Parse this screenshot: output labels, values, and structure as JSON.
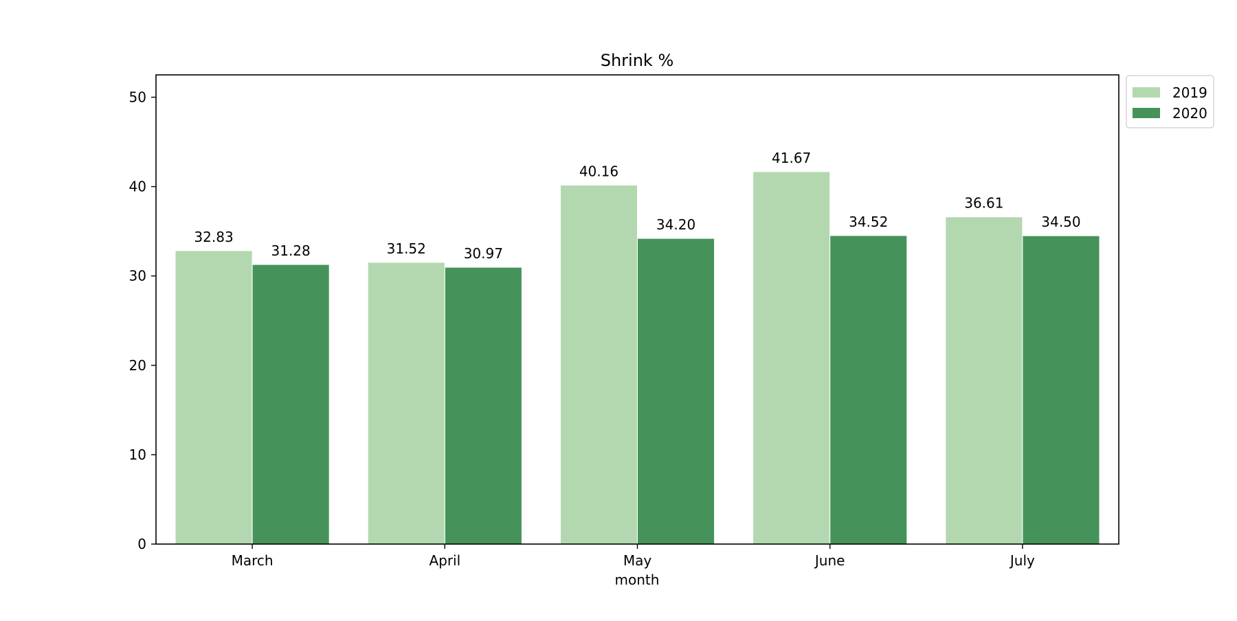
{
  "chart_data": {
    "type": "bar",
    "title": "Shrink %",
    "xlabel": "month",
    "ylabel": "",
    "categories": [
      "March",
      "April",
      "May",
      "June",
      "July"
    ],
    "series": [
      {
        "name": "2019",
        "values": [
          32.83,
          31.52,
          40.16,
          41.67,
          36.61
        ],
        "value_labels": [
          "32.83",
          "31.52",
          "40.16",
          "41.67",
          "36.61"
        ],
        "color": "#b3d8b0"
      },
      {
        "name": "2020",
        "values": [
          31.28,
          30.97,
          34.2,
          34.52,
          34.5
        ],
        "value_labels": [
          "31.28",
          "30.97",
          "34.20",
          "34.52",
          "34.50"
        ],
        "color": "#45935a"
      }
    ],
    "ylim": [
      0,
      52.5
    ],
    "yticks": [
      0,
      10,
      20,
      30,
      40,
      50
    ],
    "grid": false,
    "legend_position": "outside-top-right"
  }
}
